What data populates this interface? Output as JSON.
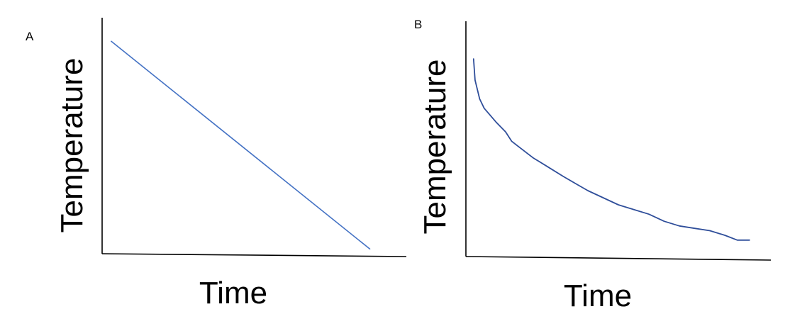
{
  "colors": {
    "series_a": "#4472C4",
    "series_b": "#2F4E9A",
    "axis": "#000000"
  },
  "chart_data": [
    {
      "panel_label": "A",
      "type": "line",
      "xlabel": "Time",
      "ylabel": "Temperature",
      "xlim": [
        0,
        10
      ],
      "ylim": [
        0,
        10
      ],
      "grid": false,
      "series": [
        {
          "x": [
            0.3,
            8.8
          ],
          "y": [
            9.0,
            0.2
          ]
        }
      ]
    },
    {
      "panel_label": "B",
      "type": "line",
      "xlabel": "Time",
      "ylabel": "Temperature",
      "xlim": [
        0,
        10
      ],
      "ylim": [
        0,
        10
      ],
      "grid": false,
      "series": [
        {
          "x": [
            0.25,
            0.3,
            0.45,
            0.6,
            0.8,
            1.0,
            1.3,
            1.5,
            1.8,
            2.2,
            2.7,
            3.2,
            3.6,
            4.0,
            4.5,
            5.0,
            5.5,
            6.0,
            6.5,
            7.0,
            7.5,
            8.0,
            8.5,
            8.9,
            9.3
          ],
          "y": [
            8.4,
            7.5,
            6.7,
            6.3,
            6.0,
            5.7,
            5.3,
            4.9,
            4.6,
            4.2,
            3.8,
            3.4,
            3.1,
            2.8,
            2.5,
            2.2,
            2.0,
            1.8,
            1.5,
            1.3,
            1.2,
            1.1,
            0.9,
            0.7,
            0.7
          ]
        }
      ]
    }
  ]
}
